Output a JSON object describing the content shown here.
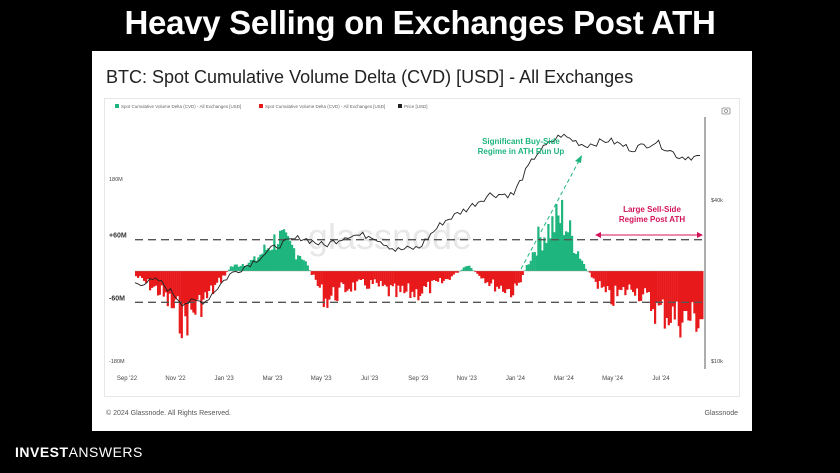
{
  "headline": "Heavy Selling on Exchanges Post ATH",
  "card": {
    "title": "BTC: Spot Cumulative Volume Delta (CVD) [USD] - All Exchanges",
    "footer_left": "© 2024 Glassnode. All Rights Reserved.",
    "footer_right": "Glassnode",
    "watermark": "glassnode"
  },
  "brand": {
    "bold": "INVEST",
    "light": "ANSWERS"
  },
  "colors": {
    "positive": "#1fb57e",
    "negative": "#e8191b",
    "price": "#222222",
    "buy_annotation": "#1fb57e",
    "sell_annotation": "#d4145a"
  },
  "chart_data": {
    "type": "area",
    "legend": [
      {
        "label": "Spot Cumulative Volume Delta (CVD) - All Exchanges [USD]",
        "color": "#1fb57e"
      },
      {
        "label": "Spot Cumulative Volume Delta (CVD) - All Exchanges [USD]",
        "color": "#e8191b"
      },
      {
        "label": "Price [USD]",
        "color": "#222222"
      }
    ],
    "x_ticks": [
      "Sep '22",
      "Nov '22",
      "Jan '23",
      "Mar '23",
      "May '23",
      "Jul '23",
      "Sep '23",
      "Nov '23",
      "Jan '24",
      "Mar '24",
      "May '24",
      "Jul '24"
    ],
    "y_left_ticks": [
      "180M",
      "-180M"
    ],
    "y_left_range": [
      -180,
      180
    ],
    "y_left_unit": "M USD",
    "threshold_labels": [
      "+60M",
      "-60M"
    ],
    "thresholds": [
      60,
      -60
    ],
    "y_right_ticks": [
      "$40k",
      "$10k"
    ],
    "y_right_log": true,
    "cvd_series_monthly_M": [
      {
        "x": "Sep '22",
        "v": -10
      },
      {
        "x": "Oct '22",
        "v": -40
      },
      {
        "x": "Nov '22",
        "v": -95
      },
      {
        "x": "Dec '22",
        "v": -50
      },
      {
        "x": "Jan '23",
        "v": 8
      },
      {
        "x": "Feb '23",
        "v": 20
      },
      {
        "x": "Mar '23",
        "v": 65
      },
      {
        "x": "Apr '23",
        "v": 30
      },
      {
        "x": "May '23",
        "v": -55
      },
      {
        "x": "Jun '23",
        "v": -30
      },
      {
        "x": "Jul '23",
        "v": -25
      },
      {
        "x": "Aug '23",
        "v": -45
      },
      {
        "x": "Sep '23",
        "v": -40
      },
      {
        "x": "Oct '23",
        "v": -20
      },
      {
        "x": "Nov '23",
        "v": 10
      },
      {
        "x": "Dec '23",
        "v": -25
      },
      {
        "x": "Jan '24",
        "v": -40
      },
      {
        "x": "Feb '24",
        "v": 60
      },
      {
        "x": "Mar '24",
        "v": 105
      },
      {
        "x": "Apr '24",
        "v": 5
      },
      {
        "x": "May '24",
        "v": -55
      },
      {
        "x": "Jun '24",
        "v": -30
      },
      {
        "x": "Jul '24",
        "v": -75
      },
      {
        "x": "Aug '24",
        "v": -90
      }
    ],
    "price_series_monthly_k": [
      {
        "x": "Sep '22",
        "v": 19.5
      },
      {
        "x": "Oct '22",
        "v": 20
      },
      {
        "x": "Nov '22",
        "v": 16.5
      },
      {
        "x": "Dec '22",
        "v": 16.8
      },
      {
        "x": "Jan '23",
        "v": 21
      },
      {
        "x": "Feb '23",
        "v": 23.5
      },
      {
        "x": "Mar '23",
        "v": 27
      },
      {
        "x": "Apr '23",
        "v": 29
      },
      {
        "x": "May '23",
        "v": 27
      },
      {
        "x": "Jun '23",
        "v": 29.5
      },
      {
        "x": "Jul '23",
        "v": 29.5
      },
      {
        "x": "Aug '23",
        "v": 26
      },
      {
        "x": "Sep '23",
        "v": 26.5
      },
      {
        "x": "Oct '23",
        "v": 33
      },
      {
        "x": "Nov '23",
        "v": 37
      },
      {
        "x": "Dec '23",
        "v": 42
      },
      {
        "x": "Jan '24",
        "v": 42
      },
      {
        "x": "Feb '24",
        "v": 60
      },
      {
        "x": "Mar '24",
        "v": 70
      },
      {
        "x": "Apr '24",
        "v": 64
      },
      {
        "x": "May '24",
        "v": 67
      },
      {
        "x": "Jun '24",
        "v": 62
      },
      {
        "x": "Jul '24",
        "v": 66
      },
      {
        "x": "Aug '24",
        "v": 58
      }
    ],
    "annotations": [
      {
        "text_lines": [
          "Significant Buy-Side",
          "Regime in ATH Run Up"
        ],
        "color": "#1fb57e"
      },
      {
        "text_lines": [
          "Large Sell-Side",
          "Regime Post ATH"
        ],
        "color": "#d4145a"
      }
    ]
  }
}
